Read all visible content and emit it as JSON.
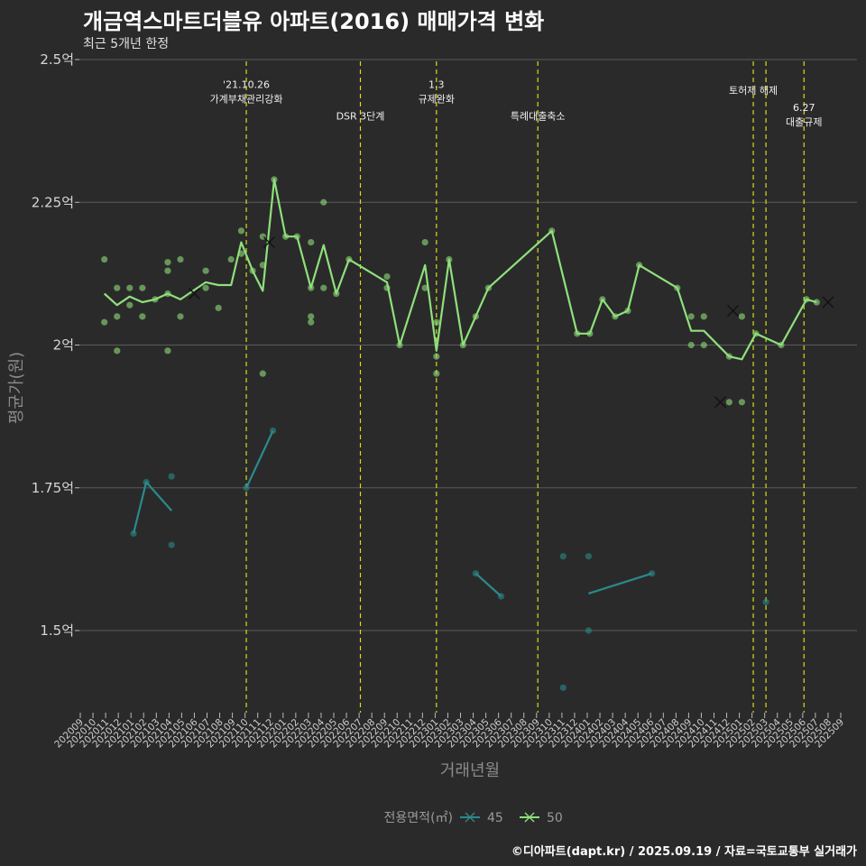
{
  "chart_data": {
    "type": "line",
    "title": "개금역스마트더블유 아파트(2016) 매매가격 변화",
    "subtitle": "최근 5개년 한정",
    "xlabel": "거래년월",
    "ylabel": "평균가(원)",
    "caption": "©디아파트(dapt.kr) / 2025.09.19 / 자료=국토교통부 실거래가",
    "ylim": [
      1.33,
      2.5
    ],
    "y_ticks": [
      {
        "value": 1.5,
        "label": "1.5억"
      },
      {
        "value": 1.75,
        "label": "1.75억"
      },
      {
        "value": 2.0,
        "label": "2억"
      },
      {
        "value": 2.25,
        "label": "2.25억"
      },
      {
        "value": 2.5,
        "label": "2.5억"
      }
    ],
    "categories": [
      "202009",
      "202010",
      "202011",
      "202012",
      "202101",
      "202102",
      "202103",
      "202104",
      "202105",
      "202106",
      "202107",
      "202108",
      "202109",
      "202110",
      "202111",
      "202112",
      "202201",
      "202202",
      "202203",
      "202204",
      "202205",
      "202206",
      "202207",
      "202208",
      "202209",
      "202210",
      "202211",
      "202212",
      "202301",
      "202302",
      "202303",
      "202304",
      "202305",
      "202306",
      "202307",
      "202308",
      "202309",
      "202310",
      "202311",
      "202312",
      "202401",
      "202402",
      "202403",
      "202404",
      "202405",
      "202406",
      "202407",
      "202408",
      "202409",
      "202410",
      "202411",
      "202412",
      "202501",
      "202502",
      "202503",
      "202504",
      "202505",
      "202506",
      "202507",
      "202508",
      "202509"
    ],
    "grid": true,
    "legend": {
      "title": "전용면적(㎡)",
      "position": "bottom"
    },
    "series": [
      {
        "name": "45",
        "color": "#2a8a8c",
        "line": [
          [
            [
              4.2,
              1.67
            ],
            [
              5.2,
              1.76
            ],
            [
              7.2,
              1.71
            ]
          ],
          [
            [
              13.1,
              1.75
            ],
            [
              15.2,
              1.85
            ]
          ],
          [
            [
              31.2,
              1.6
            ],
            [
              33.2,
              1.56
            ]
          ],
          [
            [
              40.1,
              1.565
            ],
            [
              45.1,
              1.6
            ]
          ]
        ],
        "points": [
          [
            4.2,
            1.67
          ],
          [
            5.2,
            1.76
          ],
          [
            7.2,
            1.77
          ],
          [
            7.2,
            1.65
          ],
          [
            13.1,
            1.75
          ],
          [
            15.2,
            1.85
          ],
          [
            31.2,
            1.6
          ],
          [
            33.2,
            1.56
          ],
          [
            38.1,
            1.63
          ],
          [
            38.1,
            1.4
          ],
          [
            40.1,
            1.63
          ],
          [
            40.1,
            1.5
          ],
          [
            45.1,
            1.6
          ],
          [
            54.1,
            1.55
          ]
        ],
        "crosses": []
      },
      {
        "name": "50",
        "color": "#8fe07c",
        "line": [
          [
            [
              1.9,
              2.09
            ],
            [
              2.9,
              2.07
            ],
            [
              3.9,
              2.085
            ],
            [
              4.9,
              2.075
            ],
            [
              5.9,
              2.08
            ],
            [
              6.9,
              2.09
            ],
            [
              7.9,
              2.08
            ],
            [
              9.9,
              2.11
            ],
            [
              10.9,
              2.105
            ],
            [
              11.9,
              2.105
            ],
            [
              12.7,
              2.18
            ],
            [
              13.6,
              2.13
            ],
            [
              14.4,
              2.095
            ],
            [
              15.3,
              2.29
            ],
            [
              16.2,
              2.19
            ],
            [
              17.1,
              2.19
            ],
            [
              18.2,
              2.1
            ],
            [
              19.2,
              2.175
            ],
            [
              20.2,
              2.09
            ],
            [
              21.2,
              2.15
            ],
            [
              24.2,
              2.11
            ],
            [
              25.2,
              2.0
            ],
            [
              27.2,
              2.14
            ],
            [
              28.1,
              1.99
            ],
            [
              29.1,
              2.15
            ],
            [
              30.2,
              2.0
            ],
            [
              32.2,
              2.1
            ],
            [
              37.2,
              2.2
            ],
            [
              39.2,
              2.02
            ],
            [
              40.2,
              2.02
            ],
            [
              41.2,
              2.08
            ],
            [
              42.2,
              2.05
            ],
            [
              43.2,
              2.06
            ],
            [
              44.1,
              2.14
            ],
            [
              47.1,
              2.1
            ],
            [
              48.2,
              2.025
            ],
            [
              49.2,
              2.025
            ],
            [
              51.2,
              1.98
            ],
            [
              52.2,
              1.975
            ],
            [
              53.3,
              2.02
            ],
            [
              55.3,
              2.0
            ],
            [
              57.3,
              2.08
            ],
            [
              58.1,
              2.075
            ]
          ]
        ],
        "points": [
          [
            1.9,
            2.15
          ],
          [
            1.9,
            2.04
          ],
          [
            2.9,
            2.1
          ],
          [
            2.9,
            2.05
          ],
          [
            2.9,
            1.99
          ],
          [
            3.9,
            2.1
          ],
          [
            3.9,
            2.07
          ],
          [
            4.9,
            2.1
          ],
          [
            4.9,
            2.05
          ],
          [
            5.9,
            2.08
          ],
          [
            6.9,
            2.145
          ],
          [
            6.9,
            2.13
          ],
          [
            6.9,
            2.09
          ],
          [
            6.9,
            1.99
          ],
          [
            7.9,
            2.15
          ],
          [
            7.9,
            2.05
          ],
          [
            9.9,
            2.13
          ],
          [
            9.9,
            2.1
          ],
          [
            10.9,
            2.065
          ],
          [
            11.9,
            2.15
          ],
          [
            12.7,
            2.2
          ],
          [
            12.7,
            2.16
          ],
          [
            13.6,
            2.13
          ],
          [
            14.4,
            2.19
          ],
          [
            14.4,
            2.14
          ],
          [
            14.4,
            1.95
          ],
          [
            15.3,
            2.29
          ],
          [
            16.2,
            2.19
          ],
          [
            17.1,
            2.19
          ],
          [
            18.2,
            2.18
          ],
          [
            18.2,
            2.1
          ],
          [
            18.2,
            2.05
          ],
          [
            18.2,
            2.04
          ],
          [
            19.2,
            2.25
          ],
          [
            19.2,
            2.1
          ],
          [
            20.2,
            2.09
          ],
          [
            21.2,
            2.15
          ],
          [
            24.2,
            2.12
          ],
          [
            24.2,
            2.1
          ],
          [
            25.2,
            2.0
          ],
          [
            27.2,
            2.18
          ],
          [
            27.2,
            2.1
          ],
          [
            28.1,
            2.04
          ],
          [
            28.1,
            1.98
          ],
          [
            28.1,
            1.95
          ],
          [
            29.1,
            2.15
          ],
          [
            30.2,
            2.0
          ],
          [
            31.2,
            2.05
          ],
          [
            32.2,
            2.1
          ],
          [
            37.2,
            2.2
          ],
          [
            39.2,
            2.02
          ],
          [
            40.2,
            2.02
          ],
          [
            41.2,
            2.08
          ],
          [
            42.2,
            2.05
          ],
          [
            43.2,
            2.06
          ],
          [
            44.1,
            2.14
          ],
          [
            47.1,
            2.1
          ],
          [
            48.2,
            2.05
          ],
          [
            48.2,
            2.0
          ],
          [
            49.2,
            2.05
          ],
          [
            49.2,
            2.0
          ],
          [
            51.2,
            1.98
          ],
          [
            52.2,
            2.05
          ],
          [
            52.2,
            1.9
          ],
          [
            53.3,
            2.02
          ],
          [
            51.2,
            1.9
          ],
          [
            55.3,
            2.0
          ],
          [
            57.3,
            2.08
          ],
          [
            58.1,
            2.075
          ]
        ],
        "crosses": [
          [
            9.0,
            2.09
          ],
          [
            14.9,
            2.18
          ],
          [
            50.5,
            1.9
          ],
          [
            51.5,
            2.06
          ],
          [
            59.0,
            2.075
          ]
        ]
      }
    ],
    "events": [
      {
        "x": 13.1,
        "label_lines": [
          "'21.10.26",
          "가계부채관리강화"
        ],
        "y": 2.45
      },
      {
        "x": 22.1,
        "label_lines": [
          "DSR 3단계"
        ],
        "y": 2.395
      },
      {
        "x": 28.1,
        "label_lines": [
          "1.3",
          "규제완화"
        ],
        "y": 2.45
      },
      {
        "x": 36.1,
        "label_lines": [
          "특례대출축소"
        ],
        "y": 2.395
      },
      {
        "x": 53.1,
        "label_lines": [
          "토허제 해제"
        ],
        "y": 2.44
      },
      {
        "x": 54.1,
        "label_lines": [],
        "y": 2.44
      },
      {
        "x": 57.1,
        "label_lines": [
          "6.27",
          "대출규제"
        ],
        "y": 2.41
      }
    ]
  }
}
